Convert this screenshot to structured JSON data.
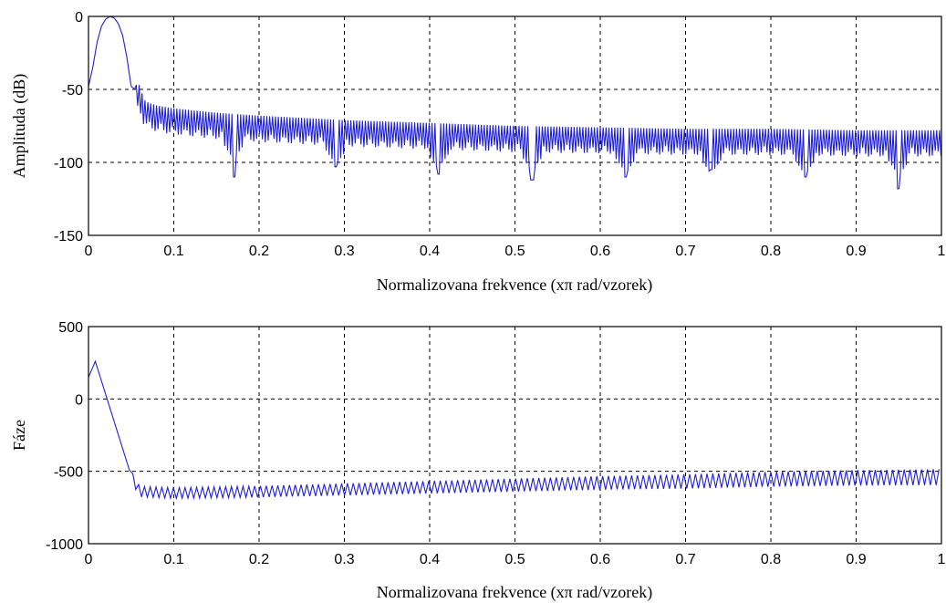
{
  "chart_data": [
    {
      "type": "line",
      "xlabel": "Normalizovana frekvence  (xπ rad/vzorek)",
      "ylabel": "Amplituda  (dB)",
      "xlim": [
        0,
        1
      ],
      "ylim": [
        -150,
        0
      ],
      "xticks": [
        "0",
        "0.1",
        "0.2",
        "0.3",
        "0.4",
        "0.5",
        "0.6",
        "0.7",
        "0.8",
        "0.9",
        "1"
      ],
      "yticks": [
        "0",
        "-50",
        "-100",
        "-150"
      ],
      "grid": true,
      "color": "#1f1fd6",
      "series": [
        {
          "x": [
            0.0,
            0.005,
            0.01,
            0.015,
            0.02,
            0.025,
            0.03,
            0.035,
            0.04,
            0.045,
            0.05,
            0.055,
            0.06,
            0.065,
            0.07,
            0.08,
            0.1,
            0.15,
            0.2,
            0.3,
            0.4,
            0.5,
            0.6,
            0.7,
            0.8,
            0.9,
            1.0
          ],
          "values": [
            -48,
            -35,
            -18,
            -7,
            -2,
            0,
            -1,
            -5,
            -13,
            -28,
            -48,
            -50,
            -50,
            -60,
            -62,
            -64,
            -66,
            -69,
            -71,
            -74,
            -76,
            -78,
            -79,
            -80,
            -80,
            -81,
            -81
          ]
        }
      ],
      "dips": [
        {
          "x": 0.17,
          "value": -110
        },
        {
          "x": 0.29,
          "value": -103
        },
        {
          "x": 0.41,
          "value": -108
        },
        {
          "x": 0.52,
          "value": -112
        },
        {
          "x": 0.63,
          "value": -110
        },
        {
          "x": 0.73,
          "value": -105
        },
        {
          "x": 0.84,
          "value": -110
        },
        {
          "x": 0.95,
          "value": -118
        }
      ]
    },
    {
      "type": "line",
      "xlabel": "Normalizovana frekvence  (xπ rad/vzorek)",
      "ylabel": "Fáze",
      "xlim": [
        0,
        1
      ],
      "ylim": [
        -1000,
        500
      ],
      "xticks": [
        "0",
        "0.1",
        "0.2",
        "0.3",
        "0.4",
        "0.5",
        "0.6",
        "0.7",
        "0.8",
        "0.9",
        "1"
      ],
      "yticks": [
        "500",
        "0",
        "-500",
        "-1000"
      ],
      "grid": true,
      "color": "#1f1fd6",
      "series": [
        {
          "x": [
            0.0,
            0.008,
            0.05,
            0.06,
            0.1,
            0.2,
            0.3,
            0.4,
            0.5,
            0.6,
            0.7,
            0.8,
            0.9,
            1.0
          ],
          "values": [
            150,
            260,
            -530,
            -640,
            -650,
            -640,
            -625,
            -610,
            -595,
            -580,
            -570,
            -555,
            -545,
            -540
          ]
        }
      ]
    }
  ]
}
